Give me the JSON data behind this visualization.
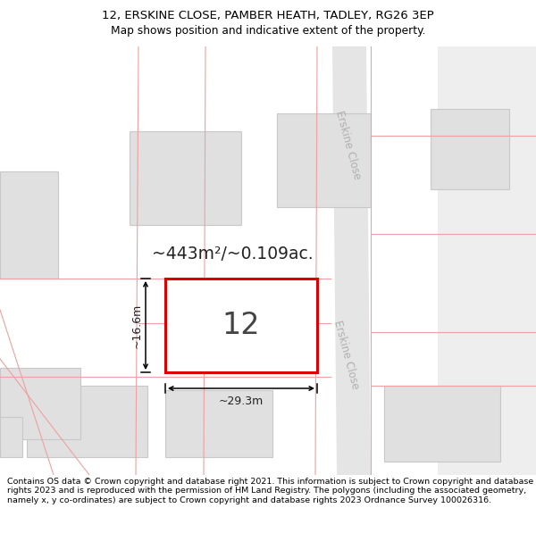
{
  "title_line1": "12, ERSKINE CLOSE, PAMBER HEATH, TADLEY, RG26 3EP",
  "title_line2": "Map shows position and indicative extent of the property.",
  "footer_text": "Contains OS data © Crown copyright and database right 2021. This information is subject to Crown copyright and database rights 2023 and is reproduced with the permission of HM Land Registry. The polygons (including the associated geometry, namely x, y co-ordinates) are subject to Crown copyright and database rights 2023 Ordnance Survey 100026316.",
  "area_text": "~443m²/~0.109ac.",
  "plot_number": "12",
  "dim_width": "~29.3m",
  "dim_height": "~16.6m",
  "bg_color": "#f0f0f0",
  "building_fill": "#e0e0e0",
  "building_edge": "#c8c8c8",
  "plot_outline_color": "#f0a0a0",
  "plot_fill": "#f0f0f0",
  "plot_edge": "#dd0000",
  "road_color": "#e8e8e8",
  "road_label_color": "#b0b0b0",
  "road_label": "Erskine Close"
}
